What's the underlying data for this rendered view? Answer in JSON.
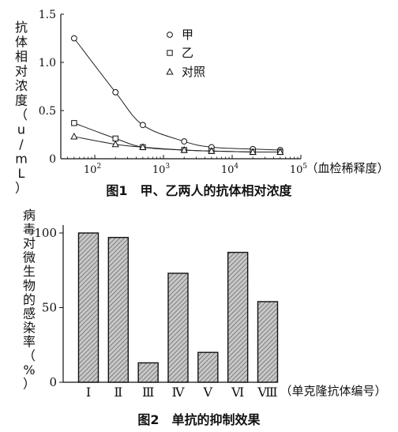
{
  "chart_data": [
    {
      "type": "line",
      "title": "图1　甲、乙两人的抗体相对浓度",
      "ylabel": "抗体相对浓度（u/mL）",
      "xlabel": "（血检稀释度）",
      "x_scale": "log",
      "x": [
        50,
        200,
        500,
        2000,
        5000,
        20000,
        50000
      ],
      "xlim": [
        32,
        100000
      ],
      "ylim": [
        0,
        1.5
      ],
      "y_ticks": [
        "0",
        "0.5",
        "1.0",
        "1.5"
      ],
      "x_tick_values": [
        100,
        1000,
        10000,
        100000
      ],
      "x_tick_labels": [
        {
          "base": "10",
          "exp": "2"
        },
        {
          "base": "10",
          "exp": "3"
        },
        {
          "base": "10",
          "exp": "4"
        },
        {
          "base": "10",
          "exp": "5"
        }
      ],
      "legend_position": "top-right",
      "series": [
        {
          "name": "甲",
          "marker": "circle",
          "values": [
            1.25,
            0.69,
            0.35,
            0.18,
            0.12,
            0.1,
            0.09
          ]
        },
        {
          "name": "乙",
          "marker": "square",
          "values": [
            0.37,
            0.21,
            0.12,
            0.09,
            0.08,
            0.07,
            0.07
          ]
        },
        {
          "name": "对照",
          "marker": "triangle",
          "values": [
            0.23,
            0.15,
            0.12,
            0.09,
            0.08,
            0.07,
            0.07
          ]
        }
      ]
    },
    {
      "type": "bar",
      "title": "图2　单抗的抑制效果",
      "ylabel": "病毒对微生物的感染率（%）",
      "xlabel": "（单克隆抗体编号）",
      "categories": [
        "Ⅰ",
        "Ⅱ",
        "Ⅲ",
        "Ⅳ",
        "Ⅴ",
        "Ⅵ",
        "Ⅷ"
      ],
      "values": [
        100,
        97,
        13,
        73,
        20,
        87,
        54
      ],
      "ylim": [
        0,
        100
      ],
      "y_ticks": [
        "0",
        "50",
        "100"
      ]
    }
  ]
}
